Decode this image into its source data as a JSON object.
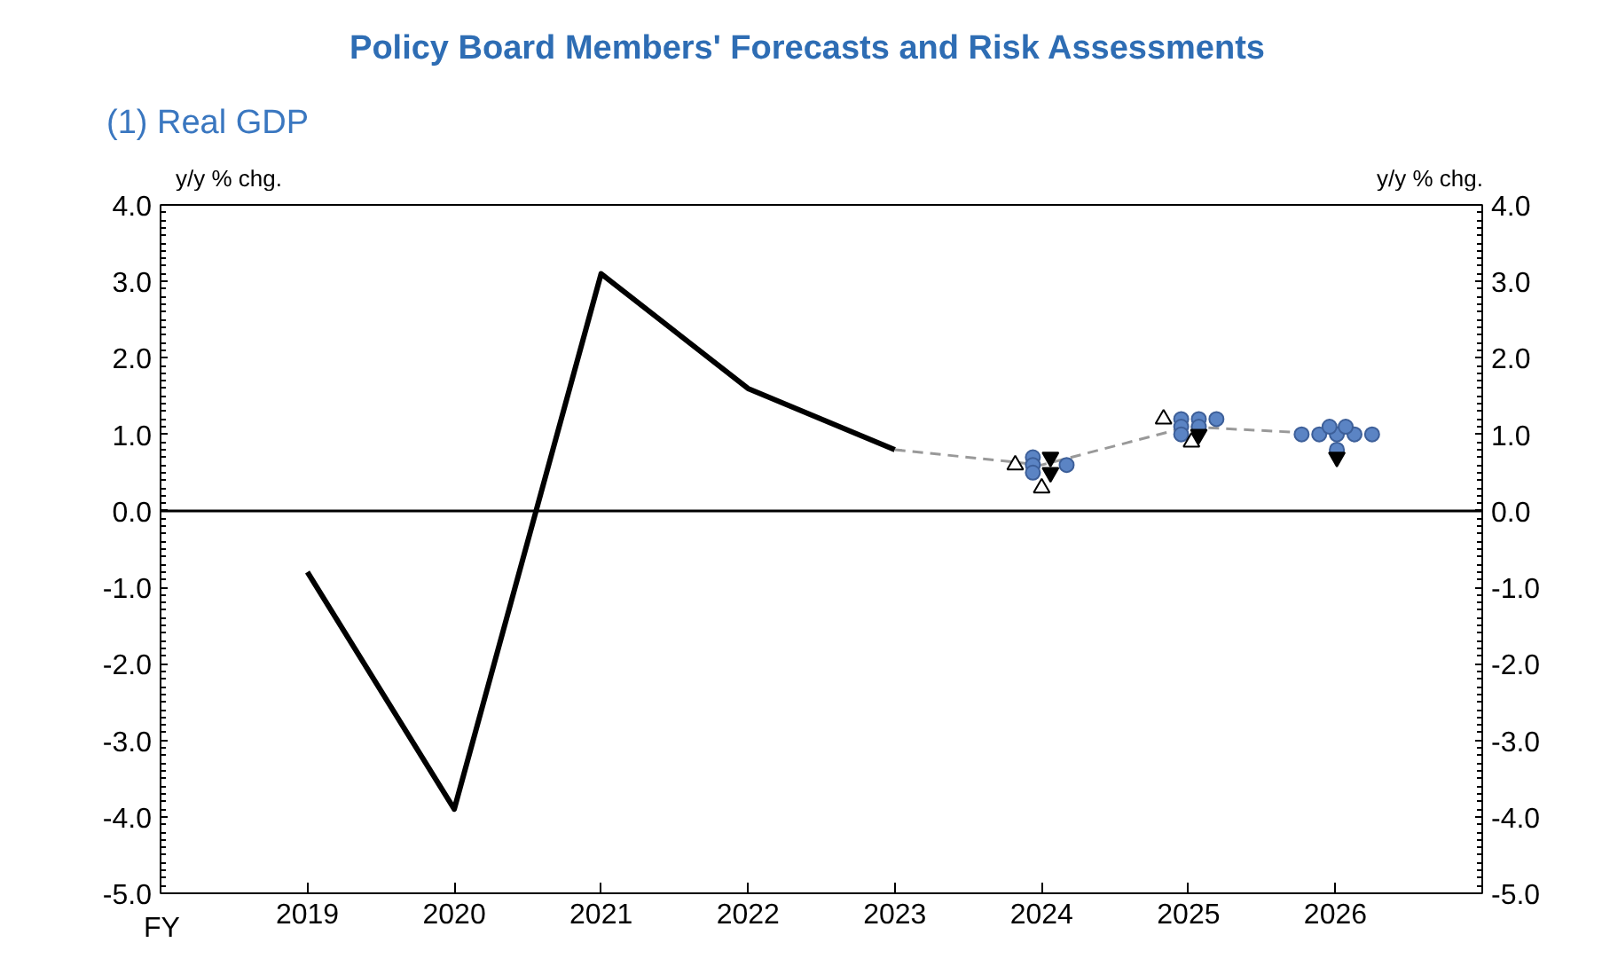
{
  "chart_data": {
    "type": "line",
    "title": "Policy Board Members' Forecasts and Risk Assessments",
    "subtitle": "(1) Real GDP",
    "xlabel": "FY",
    "ylabel": "y/y % chg.",
    "y2label": "y/y % chg.",
    "xlim": [
      2018,
      2027
    ],
    "xticks": [
      2019,
      2020,
      2021,
      2022,
      2023,
      2024,
      2025,
      2026
    ],
    "ylim": [
      -5.0,
      4.0
    ],
    "yticks": [
      {
        "value": -5,
        "label": "-5.0"
      },
      {
        "value": -4,
        "label": "-4.0"
      },
      {
        "value": -3,
        "label": "-3.0"
      },
      {
        "value": -2,
        "label": "-2.0"
      },
      {
        "value": -1,
        "label": "-1.0"
      },
      {
        "value": 0,
        "label": "0.0"
      },
      {
        "value": 1,
        "label": "1.0"
      },
      {
        "value": 2,
        "label": "2.0"
      },
      {
        "value": 3,
        "label": "3.0"
      },
      {
        "value": 4,
        "label": "4.0"
      }
    ],
    "y2lim": [
      -5.0,
      4.0
    ],
    "y2ticks": [
      {
        "value": -5,
        "label": "-5.0"
      },
      {
        "value": -4,
        "label": "-4.0"
      },
      {
        "value": -3,
        "label": "-3.0"
      },
      {
        "value": -2,
        "label": "-2.0"
      },
      {
        "value": -1,
        "label": "-1.0"
      },
      {
        "value": 0,
        "label": "0.0"
      },
      {
        "value": 1,
        "label": "1.0"
      },
      {
        "value": 2,
        "label": "2.0"
      },
      {
        "value": 3,
        "label": "3.0"
      },
      {
        "value": 4,
        "label": "4.0"
      }
    ],
    "grid": false,
    "ref_lines": [
      {
        "axis": "y",
        "value": 0,
        "color": "#000000",
        "line_style": "solid"
      }
    ],
    "series": [
      {
        "color": "#000000",
        "line_style": "solid",
        "x": [
          2019,
          2020,
          2021,
          2022,
          2023
        ],
        "values": [
          -0.8,
          -3.9,
          3.1,
          1.6,
          0.8
        ]
      },
      {
        "color": "#999999",
        "line_style": "dashed",
        "x": [
          2023,
          2024,
          2025,
          2026
        ],
        "values": [
          0.8,
          0.6,
          1.1,
          1.0
        ]
      },
      {
        "type": "scatter",
        "color": "#5b84c4",
        "marker": "circle",
        "x": [
          2023.94,
          2023.94,
          2023.94,
          2024.17,
          2024.95,
          2024.95,
          2024.95,
          2025.07,
          2025.07,
          2025.19,
          2025.77,
          2025.89,
          2026.01,
          2026.13,
          2026.25,
          2025.96,
          2026.07,
          2026.01
        ],
        "values": [
          0.7,
          0.6,
          0.5,
          0.6,
          1.2,
          1.1,
          1.0,
          1.2,
          1.1,
          1.2,
          1.0,
          1.0,
          1.0,
          1.0,
          1.0,
          1.1,
          1.1,
          0.8
        ]
      },
      {
        "type": "scatter",
        "color": "#000000",
        "marker": "triangle",
        "x": [
          2023.82,
          2024.0,
          2024.83,
          2025.02
        ],
        "values": [
          0.6,
          0.3,
          1.2,
          0.9
        ]
      },
      {
        "type": "scatter",
        "color": "#000000",
        "x": [
          2024.06,
          2024.06,
          2025.07,
          2026.01
        ],
        "values": [
          0.7,
          0.5,
          1.0,
          0.7
        ]
      }
    ]
  }
}
